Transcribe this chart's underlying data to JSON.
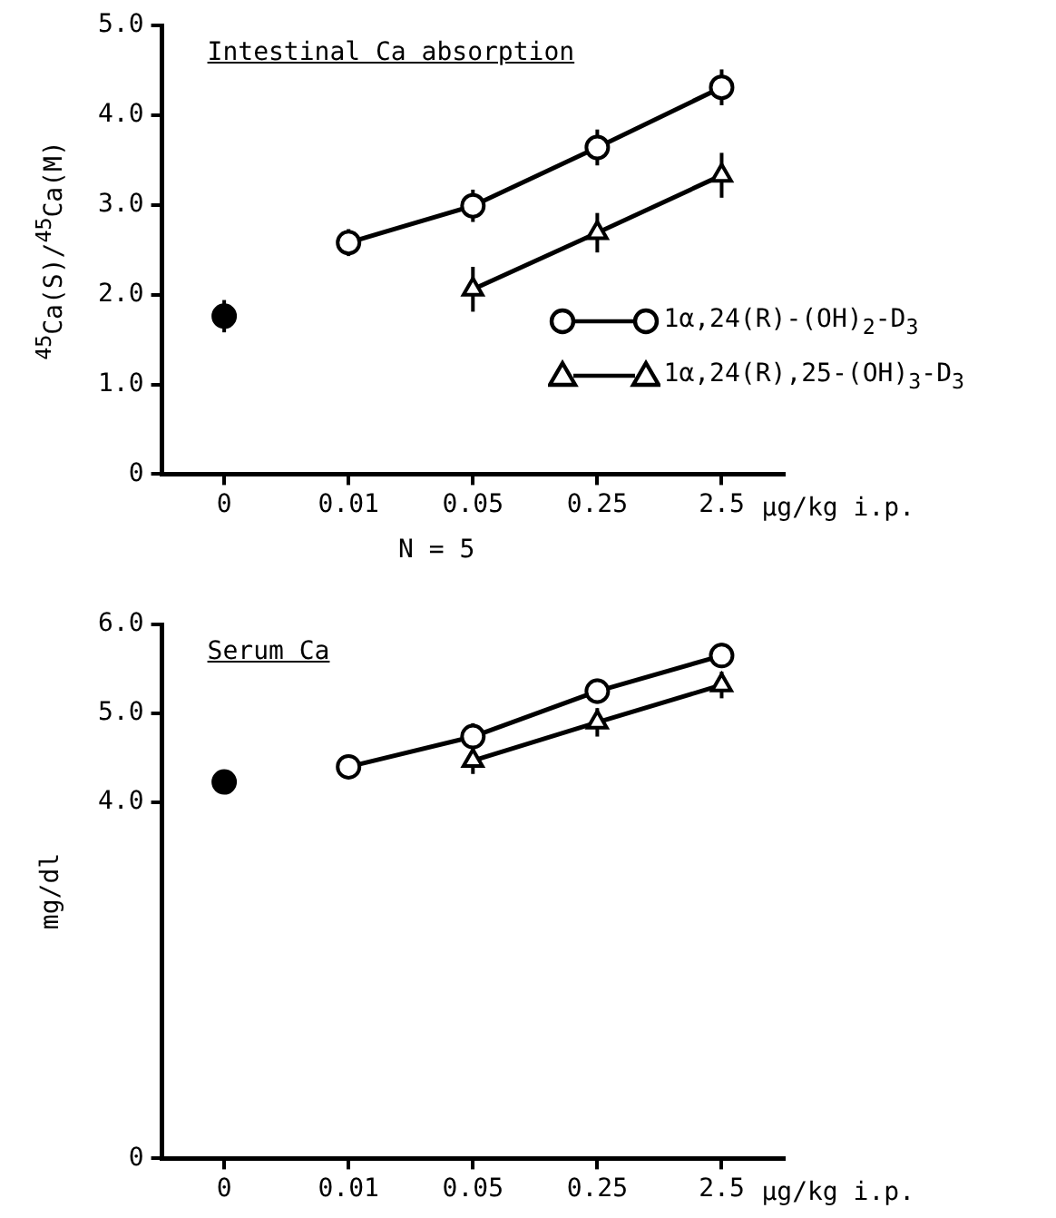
{
  "chart_data": [
    {
      "type": "line",
      "title": "Intestinal Ca absorption",
      "ylabel": "$^{45}$Ca(S)/$^{45}$Ca(M)",
      "xlabel": "μg/kg i.p.",
      "categories": [
        "0",
        "0.01",
        "0.05",
        "0.25",
        "2.5"
      ],
      "ylim": [
        0,
        5.0
      ],
      "yticks": [
        0,
        {
          "value": 1,
          "label": "1.0"
        },
        {
          "value": 2,
          "label": "2.0"
        },
        {
          "value": 3,
          "label": "3.0"
        },
        {
          "value": 4,
          "label": "4.0"
        },
        {
          "value": 5,
          "label": "5.0"
        }
      ],
      "legend": "right",
      "annotations": [
        "N = 5"
      ],
      "series": [
        {
          "type": "scatter",
          "color": "#000000",
          "marker": "circle",
          "values": [
            1.76,
            null,
            null,
            null,
            null
          ],
          "errors": [
            0.18,
            null,
            null,
            null,
            null
          ]
        },
        {
          "name": "1α,24(R)-(OH)$_{2}$-D$_{3}$",
          "color": "#000000",
          "marker": "circle",
          "values": [
            null,
            2.58,
            2.99,
            3.64,
            4.31
          ],
          "errors": [
            null,
            0.15,
            0.18,
            0.2,
            0.2
          ]
        },
        {
          "name": "1α,24(R),25-(OH)$_{3}$-D$_{3}$",
          "color": "#000000",
          "marker": "triangle",
          "values": [
            null,
            null,
            2.06,
            2.69,
            3.33
          ],
          "errors": [
            null,
            null,
            0.25,
            0.22,
            0.25
          ]
        }
      ]
    },
    {
      "type": "line",
      "title": "Serum Ca",
      "ylabel": "mg/dl",
      "xlabel": "μg/kg i.p.",
      "categories": [
        "0",
        "0.01",
        "0.05",
        "0.25",
        "2.5"
      ],
      "ylim": [
        0,
        6.0
      ],
      "yticks": [
        0,
        {
          "value": 4,
          "label": "4.0"
        },
        {
          "value": 5,
          "label": "5.0"
        },
        {
          "value": 6,
          "label": "6.0"
        }
      ],
      "series": [
        {
          "type": "scatter",
          "color": "#000000",
          "marker": "circle",
          "values": [
            4.23,
            null,
            null,
            null,
            null
          ],
          "errors": [
            0.12,
            null,
            null,
            null,
            null
          ]
        },
        {
          "color": "#000000",
          "marker": "circle",
          "values": [
            null,
            4.4,
            4.74,
            5.25,
            5.65
          ],
          "errors": [
            null,
            0.13,
            0.15,
            0.14,
            0.14
          ]
        },
        {
          "color": "#000000",
          "marker": "triangle",
          "values": [
            null,
            null,
            4.47,
            4.9,
            5.32
          ],
          "errors": [
            null,
            null,
            0.15,
            0.16,
            0.15
          ]
        }
      ]
    }
  ]
}
